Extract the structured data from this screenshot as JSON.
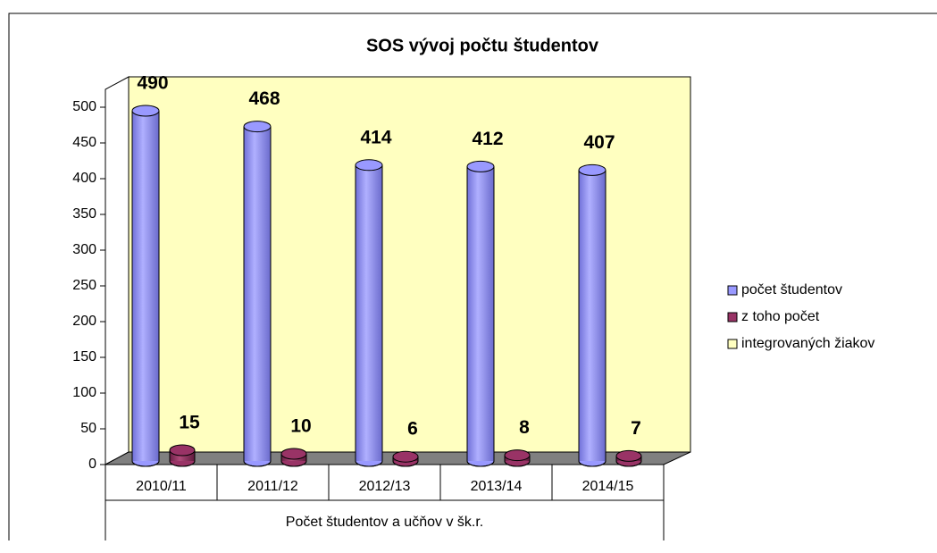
{
  "chart_data": {
    "type": "bar3d",
    "title": "SOS vývoj počtu študentov",
    "categories": [
      "2010/11",
      "2011/12",
      "2012/13",
      "2013/14",
      "2014/15"
    ],
    "xlabel": "Počet študentov a učňov v šk.r.",
    "series": [
      {
        "name": "počet študentov",
        "color": "#9999ff",
        "values": [
          490,
          468,
          414,
          412,
          407
        ]
      },
      {
        "name": "z toho počet",
        "color": "#993366",
        "values": [
          15,
          10,
          6,
          8,
          7
        ]
      },
      {
        "name": "integrovaných žiakov",
        "color": "#ffffc0",
        "values": [
          null,
          null,
          null,
          null,
          null
        ]
      }
    ],
    "ylim": [
      0,
      500
    ],
    "yticks": [
      0,
      50,
      100,
      150,
      200,
      250,
      300,
      350,
      400,
      450,
      500
    ],
    "legend": "right",
    "wall_color": "#ffffc0",
    "floor_color": "#808080"
  }
}
